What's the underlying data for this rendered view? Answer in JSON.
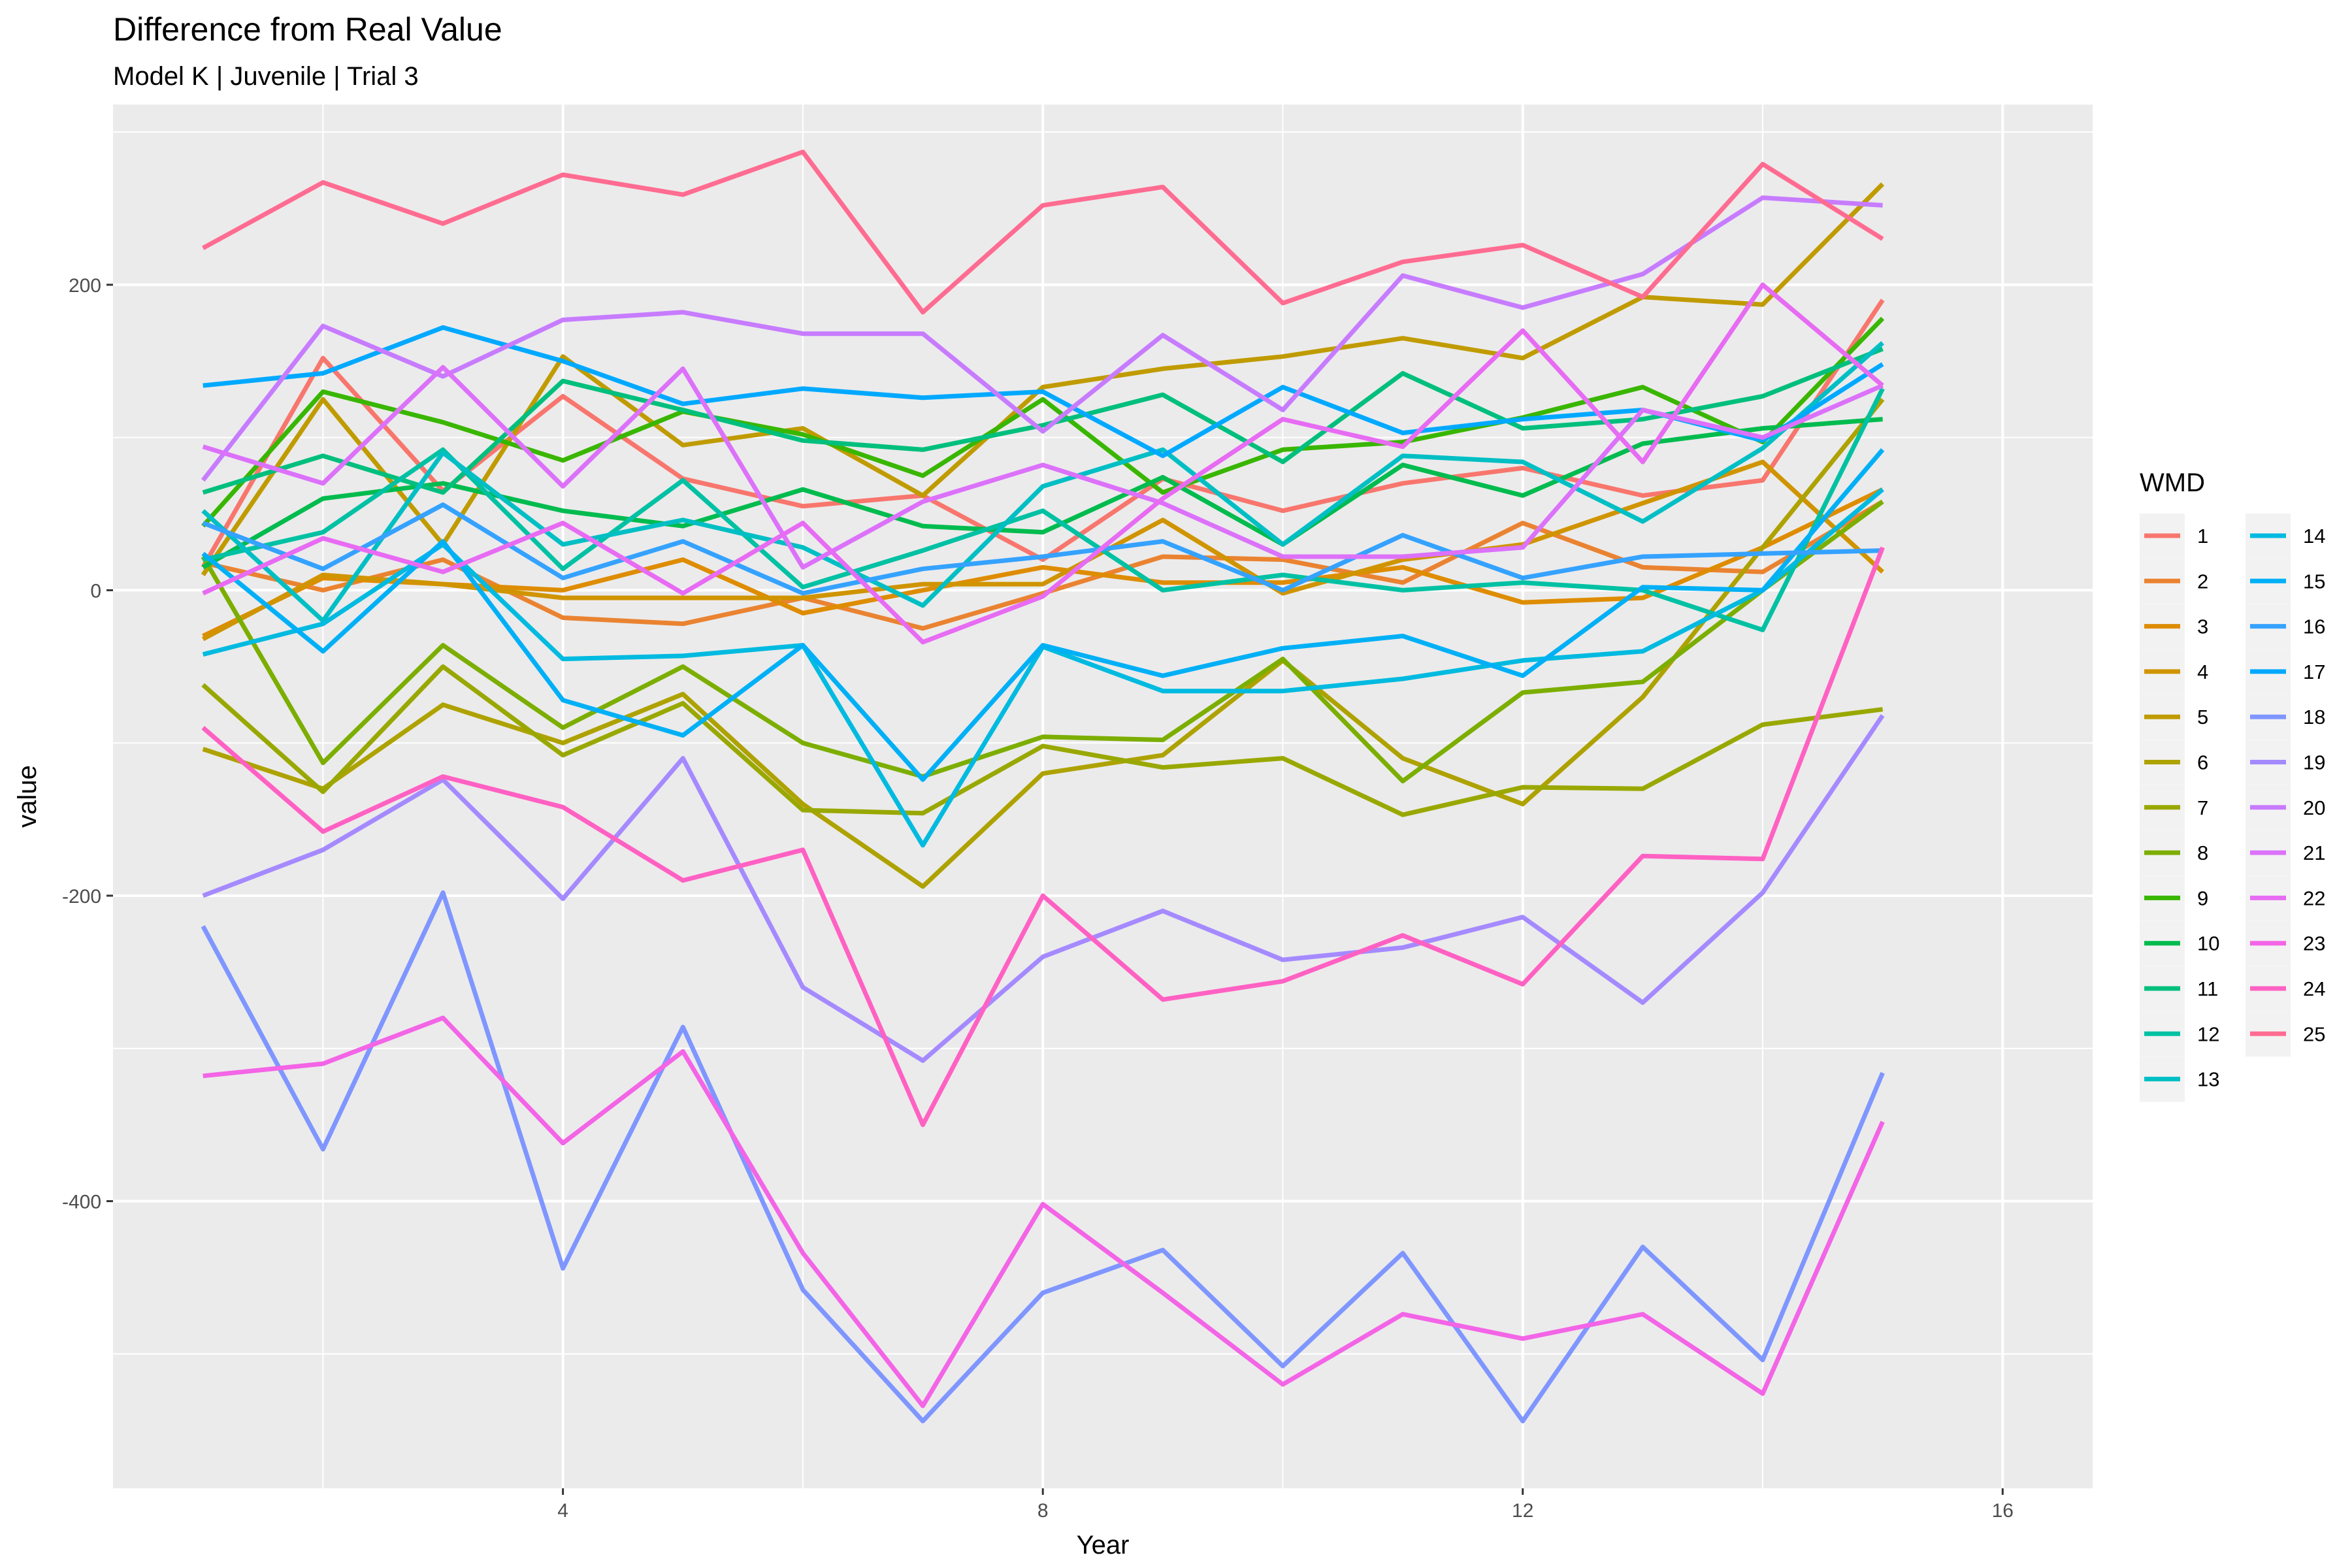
{
  "chart_data": {
    "type": "line",
    "title": "Difference from Real Value",
    "subtitle": "Model K | Juvenile | Trial 3",
    "xlabel": "Year",
    "ylabel": "value",
    "xlim": [
      0.25,
      16.75
    ],
    "ylim": [
      -588,
      318
    ],
    "x_ticks": [
      4,
      8,
      12,
      16
    ],
    "y_ticks": [
      -400,
      -200,
      0,
      200
    ],
    "grid": true,
    "legend_title": "WMD",
    "legend_position": "right",
    "x": [
      1,
      2,
      3,
      4,
      5,
      6,
      7,
      8,
      9,
      10,
      11,
      12,
      13,
      14,
      15
    ],
    "series": [
      {
        "name": "1",
        "color": "#F8766D",
        "values": [
          15,
          152,
          65,
          127,
          73,
          55,
          62,
          20,
          73,
          52,
          70,
          80,
          62,
          72,
          190
        ]
      },
      {
        "name": "2",
        "color": "#EA8331",
        "values": [
          18,
          0,
          20,
          -18,
          -22,
          -5,
          -25,
          -2,
          22,
          20,
          5,
          44,
          15,
          12,
          58
        ]
      },
      {
        "name": "3",
        "color": "#DE8C00",
        "values": [
          -30,
          8,
          4,
          0,
          20,
          -15,
          0,
          15,
          5,
          5,
          15,
          -8,
          -5,
          28,
          66
        ]
      },
      {
        "name": "4",
        "color": "#D09400",
        "values": [
          -32,
          10,
          4,
          -5,
          -5,
          -5,
          4,
          4,
          46,
          -2,
          20,
          30,
          57,
          84,
          12
        ]
      },
      {
        "name": "5",
        "color": "#C09B00",
        "values": [
          10,
          125,
          30,
          153,
          95,
          106,
          62,
          133,
          145,
          153,
          165,
          152,
          192,
          187,
          266
        ]
      },
      {
        "name": "6",
        "color": "#AEA200",
        "values": [
          -104,
          -130,
          -75,
          -100,
          -68,
          -140,
          -194,
          -120,
          -108,
          -46,
          -110,
          -140,
          -70,
          28,
          125
        ]
      },
      {
        "name": "7",
        "color": "#99A800",
        "values": [
          -62,
          -132,
          -50,
          -108,
          -74,
          -144,
          -146,
          -102,
          -116,
          -110,
          -147,
          -129,
          -130,
          -88,
          -78
        ]
      },
      {
        "name": "8",
        "color": "#7CAE00",
        "values": [
          22,
          -113,
          -36,
          -90,
          -50,
          -100,
          -122,
          -96,
          -98,
          -45,
          -125,
          -67,
          -60,
          0,
          58
        ]
      },
      {
        "name": "9",
        "color": "#39B600",
        "values": [
          42,
          130,
          110,
          85,
          117,
          102,
          75,
          125,
          64,
          92,
          97,
          113,
          133,
          97,
          178
        ]
      },
      {
        "name": "10",
        "color": "#00BB4E",
        "values": [
          15,
          60,
          70,
          52,
          42,
          66,
          42,
          38,
          74,
          30,
          82,
          62,
          96,
          106,
          112
        ]
      },
      {
        "name": "11",
        "color": "#00BF7D",
        "values": [
          64,
          88,
          64,
          137,
          118,
          98,
          92,
          108,
          128,
          84,
          142,
          106,
          112,
          127,
          158
        ]
      },
      {
        "name": "12",
        "color": "#00C1A3",
        "values": [
          20,
          38,
          92,
          14,
          72,
          2,
          26,
          52,
          0,
          10,
          0,
          5,
          0,
          -26,
          132
        ]
      },
      {
        "name": "13",
        "color": "#00BFC4",
        "values": [
          52,
          -20,
          90,
          30,
          46,
          28,
          -10,
          68,
          92,
          30,
          88,
          84,
          45,
          93,
          162
        ]
      },
      {
        "name": "14",
        "color": "#00BAE0",
        "values": [
          -42,
          -22,
          30,
          -45,
          -43,
          -36,
          -167,
          -37,
          -66,
          -66,
          -58,
          -46,
          -40,
          0,
          66
        ]
      },
      {
        "name": "15",
        "color": "#00B0F6",
        "values": [
          24,
          -40,
          32,
          -72,
          -95,
          -36,
          -124,
          -36,
          -56,
          -38,
          -30,
          -56,
          2,
          0,
          92
        ]
      },
      {
        "name": "16",
        "color": "#35A2FF",
        "values": [
          44,
          14,
          56,
          8,
          32,
          -2,
          14,
          22,
          32,
          0,
          36,
          8,
          22,
          24,
          26
        ]
      },
      {
        "name": "17",
        "color": "#00A9FF",
        "values": [
          134,
          142,
          172,
          150,
          122,
          132,
          126,
          130,
          88,
          133,
          103,
          112,
          118,
          98,
          148
        ]
      },
      {
        "name": "18",
        "color": "#7F96FF",
        "values": [
          -220,
          -366,
          -198,
          -444,
          -286,
          -458,
          -544,
          -460,
          -432,
          -508,
          -434,
          -544,
          -430,
          -504,
          -316
        ]
      },
      {
        "name": "19",
        "color": "#A58AFF",
        "values": [
          -200,
          -170,
          -124,
          -202,
          -110,
          -260,
          -308,
          -240,
          -210,
          -242,
          -234,
          -214,
          -270,
          -198,
          -82
        ]
      },
      {
        "name": "20",
        "color": "#C77CFF",
        "values": [
          72,
          173,
          140,
          177,
          182,
          168,
          168,
          104,
          167,
          118,
          206,
          185,
          207,
          257,
          252
        ]
      },
      {
        "name": "21",
        "color": "#DC71FA",
        "values": [
          94,
          70,
          146,
          68,
          145,
          15,
          58,
          82,
          57,
          22,
          22,
          28,
          118,
          100,
          134
        ]
      },
      {
        "name": "22",
        "color": "#E76BF3",
        "values": [
          -2,
          34,
          12,
          44,
          -2,
          44,
          -34,
          -4,
          60,
          112,
          94,
          170,
          84,
          200,
          134
        ]
      },
      {
        "name": "23",
        "color": "#F365E6",
        "values": [
          -318,
          -310,
          -280,
          -362,
          -302,
          -434,
          -534,
          -402,
          -460,
          -520,
          -474,
          -490,
          -474,
          -526,
          -348
        ]
      },
      {
        "name": "24",
        "color": "#FF61C3",
        "values": [
          -90,
          -158,
          -122,
          -142,
          -190,
          -170,
          -350,
          -200,
          -268,
          -256,
          -226,
          -258,
          -174,
          -176,
          28
        ]
      },
      {
        "name": "25",
        "color": "#FF6C91",
        "values": [
          224,
          267,
          240,
          272,
          259,
          287,
          182,
          252,
          264,
          188,
          215,
          226,
          192,
          279,
          230
        ]
      }
    ]
  }
}
